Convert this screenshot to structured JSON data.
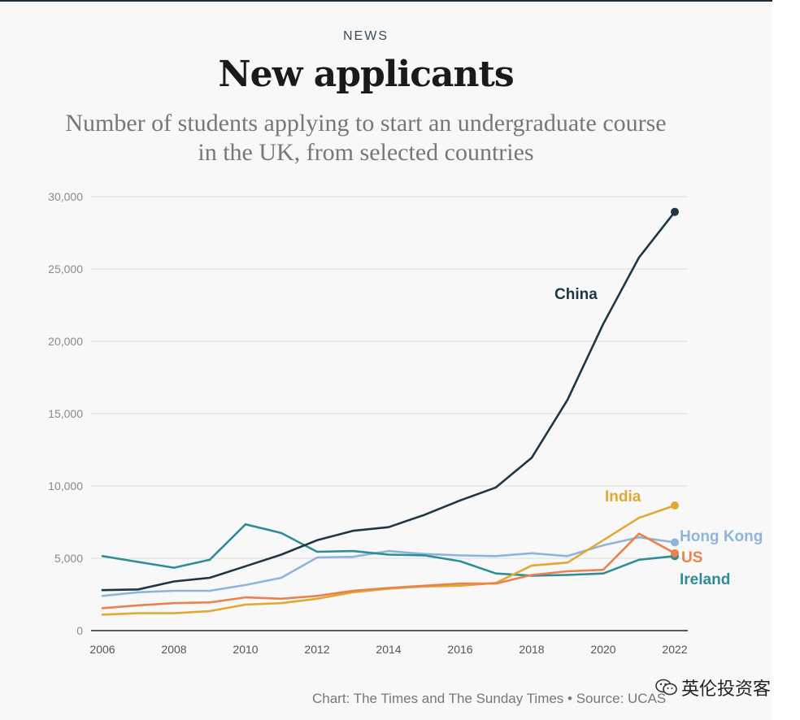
{
  "header": {
    "kicker": "NEWS",
    "title": "New applicants",
    "subtitle_line1": "Number of students applying to start an undergraduate course",
    "subtitle_line2": "in the UK, from selected countries"
  },
  "footer": {
    "source": "Chart: The Times and The Sunday Times • Source: UCAS",
    "watermark": "英伦投资客"
  },
  "chart_data": {
    "type": "line",
    "title": "New applicants",
    "xlabel": "",
    "ylabel": "",
    "xlim": [
      2006,
      2022
    ],
    "ylim": [
      0,
      30000
    ],
    "y_ticks": [
      0,
      5000,
      10000,
      15000,
      20000,
      25000,
      30000
    ],
    "y_tick_labels": [
      "0",
      "5,000",
      "10,000",
      "15,000",
      "20,000",
      "25,000",
      "30,000"
    ],
    "x_ticks": [
      2006,
      2008,
      2010,
      2012,
      2014,
      2016,
      2018,
      2020,
      2022
    ],
    "x_tick_labels": [
      "2006",
      "2008",
      "2010",
      "2012",
      "2014",
      "2016",
      "2018",
      "2020",
      "2022"
    ],
    "grid": true,
    "legend": "direct labels at line ends",
    "x": [
      2006,
      2007,
      2008,
      2009,
      2010,
      2011,
      2012,
      2013,
      2014,
      2015,
      2016,
      2017,
      2018,
      2019,
      2020,
      2021,
      2022
    ],
    "series": [
      {
        "name": "China",
        "color": "#1f3644",
        "values": [
          2800,
          2850,
          3400,
          3650,
          4450,
          5250,
          6250,
          6900,
          7150,
          8000,
          9000,
          9900,
          11950,
          15950,
          21200,
          25800,
          28950
        ]
      },
      {
        "name": "India",
        "color": "#e1a933",
        "values": [
          1100,
          1200,
          1200,
          1350,
          1800,
          1900,
          2200,
          2650,
          2900,
          3050,
          3100,
          3300,
          4500,
          4700,
          6250,
          7800,
          8650
        ]
      },
      {
        "name": "Hong Kong",
        "color": "#8fb5dc",
        "values": [
          2400,
          2650,
          2750,
          2750,
          3150,
          3650,
          5050,
          5100,
          5500,
          5300,
          5200,
          5150,
          5350,
          5150,
          5900,
          6450,
          6100
        ]
      },
      {
        "name": "US",
        "color": "#e8834b",
        "values": [
          1550,
          1750,
          1900,
          1950,
          2300,
          2200,
          2400,
          2750,
          2950,
          3100,
          3250,
          3250,
          3850,
          4100,
          4200,
          6700,
          5350
        ]
      },
      {
        "name": "Ireland",
        "color": "#2e8d96",
        "values": [
          5150,
          4750,
          4350,
          4900,
          7350,
          6750,
          5450,
          5500,
          5250,
          5200,
          4800,
          3950,
          3800,
          3850,
          3950,
          4900,
          5150
        ]
      }
    ]
  }
}
